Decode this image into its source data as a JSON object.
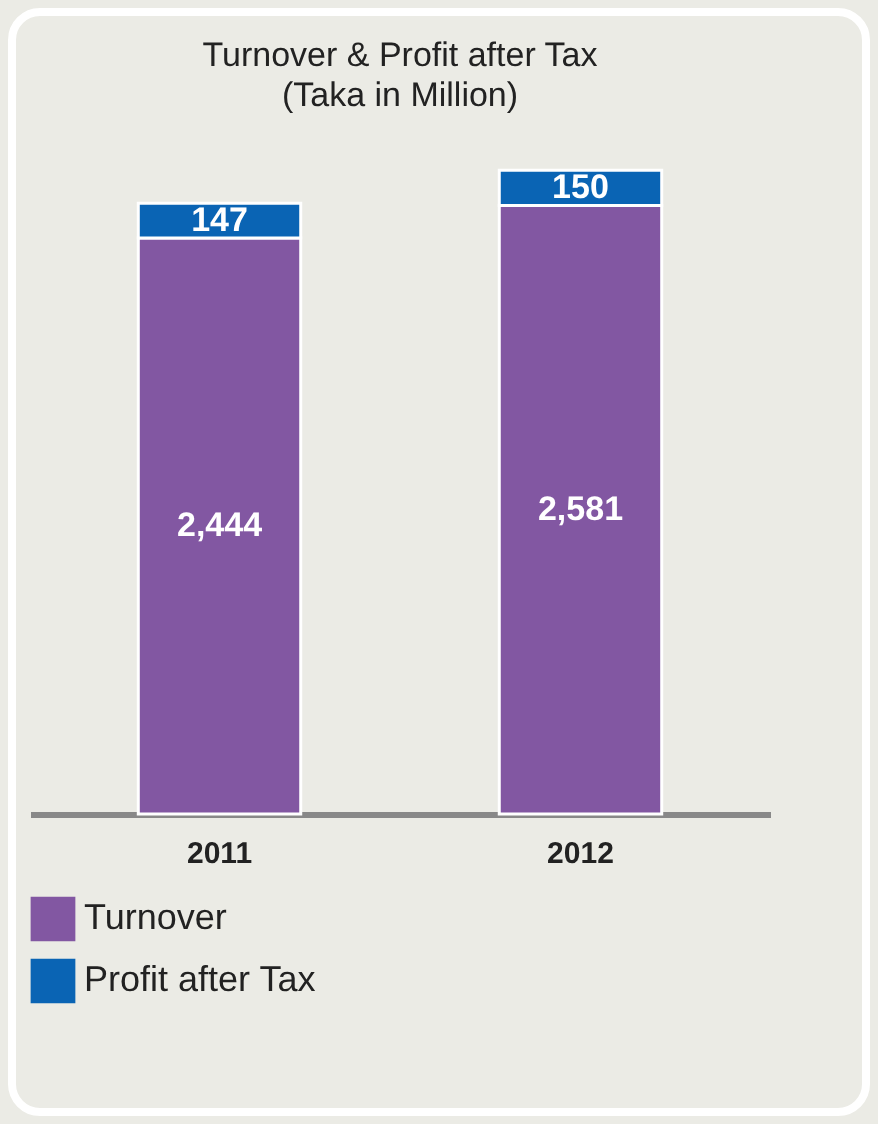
{
  "chart_data": {
    "type": "bar",
    "title": "Turnover & Profit after Tax",
    "subtitle": "(Taka in Million)",
    "categories": [
      "2011",
      "2012"
    ],
    "stacked": true,
    "legend": "bottom",
    "series": [
      {
        "name": "Turnover",
        "color": "#8257a2",
        "values": [
          2444,
          2581
        ],
        "value_labels": [
          "2,444",
          "2,581"
        ]
      },
      {
        "name": "Profit after Tax",
        "color": "#0a64b4",
        "values": [
          147,
          150
        ],
        "value_labels": [
          "147",
          "150"
        ]
      }
    ]
  }
}
